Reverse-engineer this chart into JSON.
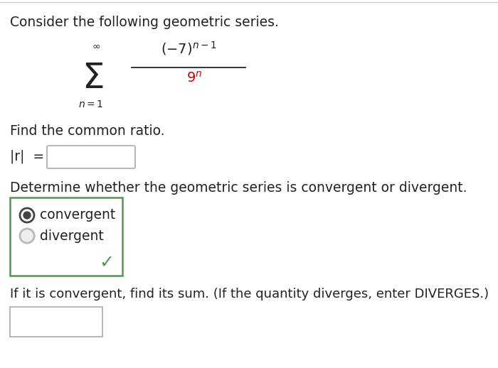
{
  "white": "#ffffff",
  "text_color": "#222222",
  "red_color": "#cc0000",
  "green_color": "#4a9a4a",
  "green_border": "#4a9a4a",
  "gray_radio": "#bbbbbb",
  "dark_radio": "#444444",
  "box_border": "#aaaaaa",
  "top_border_color": "#cccccc",
  "title": "Consider the following geometric series.",
  "find_ratio": "Find the common ratio.",
  "abs_r_label": "|r|  =",
  "determine_text": "Determine whether the geometric series is convergent or divergent.",
  "convergent": "convergent",
  "divergent": "divergent",
  "if_convergent": "If it is convergent, find its sum. (If the quantity diverges, enter DIVERGES.)"
}
